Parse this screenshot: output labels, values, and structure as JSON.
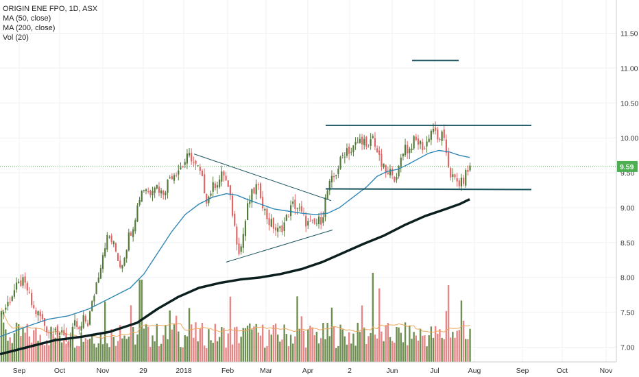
{
  "legend": {
    "symbol_line": "ORIGIN ENE FPO, 1D, ASX",
    "ma50": "MA (50, close)",
    "ma200": "MA (200, close)",
    "vol": "Vol (20)"
  },
  "colors": {
    "up": "#53793a",
    "down": "#e06666",
    "vol_up": "#6f8f52",
    "vol_down": "#e58787",
    "ma50": "#2f86b5",
    "ma200": "#0c1f1f",
    "vol_ma": "#f1a65a",
    "drawing": "#1b5560",
    "grid": "#eef0f3",
    "price_tag": "#4caf50"
  },
  "chart_data": {
    "type": "candlestick",
    "title": "",
    "x_tick_labels": [
      "Sep",
      "Oct",
      "Nov",
      "29",
      "2018",
      "Feb",
      "Mar",
      "Apr",
      "2",
      "Jun",
      "Jul",
      "Aug",
      "Sep",
      "Oct",
      "Nov"
    ],
    "y_ticks": [
      7.0,
      7.5,
      8.0,
      8.5,
      9.0,
      9.5,
      10.0,
      10.5,
      11.0,
      11.5
    ],
    "y_tick_labels": [
      "7.00",
      "7.50",
      "8.00",
      "8.50",
      "9.00",
      "9.50",
      "10.00",
      "10.50",
      "11.00",
      "11.50"
    ],
    "ylim": [
      6.89,
      12.0
    ],
    "last_price": 9.59,
    "last_price_label": "9.59",
    "price_path": [
      [
        0,
        7.45
      ],
      [
        10,
        7.6
      ],
      [
        20,
        7.8
      ],
      [
        32,
        7.95
      ],
      [
        40,
        7.82
      ],
      [
        48,
        7.55
      ],
      [
        58,
        7.45
      ],
      [
        66,
        7.3
      ],
      [
        74,
        7.2
      ],
      [
        80,
        7.35
      ],
      [
        86,
        7.1
      ],
      [
        92,
        7.25
      ],
      [
        98,
        7.05
      ],
      [
        104,
        7.15
      ],
      [
        110,
        7.35
      ],
      [
        116,
        7.2
      ],
      [
        122,
        7.4
      ],
      [
        128,
        7.35
      ],
      [
        134,
        7.6
      ],
      [
        140,
        7.9
      ],
      [
        146,
        8.15
      ],
      [
        152,
        8.45
      ],
      [
        158,
        8.6
      ],
      [
        164,
        8.5
      ],
      [
        170,
        8.35
      ],
      [
        176,
        8.15
      ],
      [
        182,
        8.35
      ],
      [
        188,
        8.6
      ],
      [
        194,
        8.75
      ],
      [
        200,
        9.0
      ],
      [
        206,
        9.25
      ],
      [
        212,
        9.3
      ],
      [
        218,
        9.2
      ],
      [
        224,
        9.35
      ],
      [
        230,
        9.3
      ],
      [
        236,
        9.2
      ],
      [
        242,
        9.3
      ],
      [
        248,
        9.45
      ],
      [
        254,
        9.5
      ],
      [
        260,
        9.55
      ],
      [
        266,
        9.6
      ],
      [
        272,
        9.7
      ],
      [
        278,
        9.75
      ],
      [
        284,
        9.6
      ],
      [
        290,
        9.55
      ],
      [
        296,
        9.35
      ],
      [
        302,
        9.1
      ],
      [
        308,
        9.25
      ],
      [
        314,
        9.35
      ],
      [
        320,
        9.4
      ],
      [
        326,
        9.5
      ],
      [
        332,
        9.3
      ],
      [
        338,
        9.0
      ],
      [
        344,
        8.6
      ],
      [
        350,
        8.35
      ],
      [
        356,
        8.7
      ],
      [
        362,
        9.05
      ],
      [
        368,
        9.2
      ],
      [
        374,
        9.3
      ],
      [
        380,
        9.2
      ],
      [
        386,
        8.95
      ],
      [
        392,
        8.8
      ],
      [
        398,
        8.75
      ],
      [
        404,
        8.65
      ],
      [
        410,
        8.7
      ],
      [
        416,
        8.8
      ],
      [
        422,
        8.95
      ],
      [
        428,
        9.05
      ],
      [
        434,
        9.0
      ],
      [
        440,
        8.9
      ],
      [
        446,
        8.8
      ],
      [
        452,
        8.75
      ],
      [
        458,
        8.75
      ],
      [
        464,
        8.8
      ],
      [
        470,
        8.85
      ],
      [
        476,
        9.2
      ],
      [
        482,
        9.35
      ],
      [
        488,
        9.45
      ],
      [
        494,
        9.6
      ],
      [
        500,
        9.75
      ],
      [
        506,
        9.85
      ],
      [
        512,
        9.8
      ],
      [
        518,
        9.9
      ],
      [
        524,
        9.95
      ],
      [
        530,
        10.0
      ],
      [
        536,
        9.75
      ],
      [
        542,
        10.05
      ],
      [
        548,
        9.9
      ],
      [
        554,
        9.65
      ],
      [
        560,
        9.55
      ],
      [
        566,
        9.45
      ],
      [
        572,
        9.55
      ],
      [
        578,
        9.35
      ],
      [
        584,
        9.7
      ],
      [
        590,
        9.9
      ],
      [
        596,
        9.8
      ],
      [
        602,
        9.95
      ],
      [
        608,
        9.95
      ],
      [
        614,
        9.9
      ],
      [
        620,
        9.85
      ],
      [
        626,
        10.05
      ],
      [
        632,
        10.15
      ],
      [
        638,
        9.95
      ],
      [
        644,
        10.05
      ],
      [
        650,
        9.85
      ],
      [
        656,
        9.5
      ],
      [
        662,
        9.4
      ],
      [
        668,
        9.35
      ],
      [
        674,
        9.35
      ],
      [
        680,
        9.5
      ],
      [
        686,
        9.59
      ]
    ],
    "ma50_path": [
      [
        0,
        7.15
      ],
      [
        40,
        7.3
      ],
      [
        70,
        7.4
      ],
      [
        100,
        7.45
      ],
      [
        130,
        7.55
      ],
      [
        160,
        7.7
      ],
      [
        190,
        7.85
      ],
      [
        210,
        8.05
      ],
      [
        230,
        8.35
      ],
      [
        250,
        8.65
      ],
      [
        270,
        8.9
      ],
      [
        290,
        9.05
      ],
      [
        310,
        9.15
      ],
      [
        330,
        9.2
      ],
      [
        345,
        9.18
      ],
      [
        360,
        9.12
      ],
      [
        380,
        9.05
      ],
      [
        400,
        8.98
      ],
      [
        420,
        8.95
      ],
      [
        440,
        8.92
      ],
      [
        460,
        8.9
      ],
      [
        478,
        8.92
      ],
      [
        495,
        9.0
      ],
      [
        515,
        9.15
      ],
      [
        535,
        9.3
      ],
      [
        550,
        9.45
      ],
      [
        565,
        9.52
      ],
      [
        580,
        9.55
      ],
      [
        595,
        9.62
      ],
      [
        610,
        9.7
      ],
      [
        625,
        9.78
      ],
      [
        640,
        9.82
      ],
      [
        655,
        9.8
      ],
      [
        670,
        9.75
      ],
      [
        685,
        9.72
      ]
    ],
    "ma200_path": [
      [
        0,
        6.9
      ],
      [
        40,
        7.0
      ],
      [
        80,
        7.1
      ],
      [
        120,
        7.15
      ],
      [
        160,
        7.22
      ],
      [
        200,
        7.35
      ],
      [
        230,
        7.55
      ],
      [
        260,
        7.72
      ],
      [
        290,
        7.85
      ],
      [
        320,
        7.92
      ],
      [
        350,
        7.97
      ],
      [
        380,
        8.0
      ],
      [
        410,
        8.05
      ],
      [
        440,
        8.12
      ],
      [
        470,
        8.22
      ],
      [
        500,
        8.35
      ],
      [
        530,
        8.48
      ],
      [
        560,
        8.6
      ],
      [
        590,
        8.75
      ],
      [
        620,
        8.88
      ],
      [
        650,
        8.98
      ],
      [
        670,
        9.05
      ],
      [
        685,
        9.12
      ]
    ],
    "drawings": [
      {
        "name": "triangle-upper-line",
        "p1": [
          283,
          9.77
        ],
        "p2": [
          483,
          9.1
        ]
      },
      {
        "name": "triangle-lower-line",
        "p1": [
          330,
          8.22
        ],
        "p2": [
          485,
          8.68
        ]
      },
      {
        "name": "range-top-line",
        "p1": [
          475,
          10.18
        ],
        "p2": [
          775,
          10.18
        ]
      },
      {
        "name": "range-bottom-line",
        "p1": [
          475,
          9.27
        ],
        "p2": [
          775,
          9.26
        ]
      },
      {
        "name": "target-line",
        "p1": [
          601,
          11.11
        ],
        "p2": [
          669,
          11.11
        ]
      }
    ]
  }
}
